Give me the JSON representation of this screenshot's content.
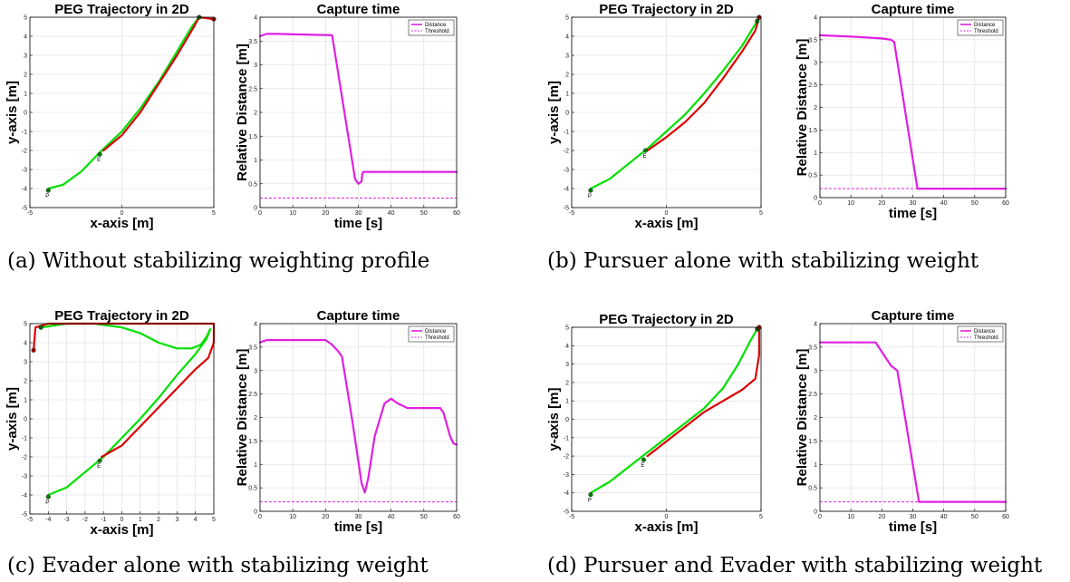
{
  "panels": [
    {
      "caption": "(a) Without stabilizing weighting profile",
      "trajectory": {
        "type": "line",
        "title": "PEG Trajectory in 2D",
        "xlabel": "x-axis [m]",
        "ylabel": "y-axis [m]",
        "xlim": [
          -5,
          5
        ],
        "ylim": [
          -5,
          5
        ],
        "xticks": [
          -5,
          0,
          5
        ],
        "yticks": [
          -5,
          -4,
          -3,
          -2,
          -1,
          0,
          1,
          2,
          3,
          4,
          5
        ],
        "grid": true,
        "series": [
          {
            "color": "#00e000",
            "x": [
              -4,
              -3.2,
              -2.2,
              -1.2,
              0,
              1,
              2,
              3,
              3.8,
              4.2
            ],
            "y": [
              -4,
              -3.8,
              -3.1,
              -2.1,
              -1,
              0.2,
              1.6,
              3.2,
              4.5,
              5
            ]
          },
          {
            "color": "#dd0000",
            "x": [
              -1,
              0,
              1,
              2,
              3,
              3.8,
              4.2,
              5
            ],
            "y": [
              -2,
              -1.2,
              0,
              1.5,
              3,
              4.3,
              5,
              4.9
            ]
          }
        ],
        "markers": [
          {
            "x": -4,
            "y": -4.1,
            "color": "#008000",
            "label": "P"
          },
          {
            "x": -1.2,
            "y": -2.2,
            "color": "#008000",
            "label": "E"
          },
          {
            "x": 4.2,
            "y": 5,
            "color": "#006400",
            "label": ""
          },
          {
            "x": 5,
            "y": 4.9,
            "color": "#a00000",
            "label": ""
          }
        ]
      },
      "capture": {
        "type": "line",
        "title": "Capture time",
        "xlabel": "time [s]",
        "ylabel": "Relative Distance [m]",
        "xlim": [
          0,
          60
        ],
        "ylim": [
          0,
          4
        ],
        "xticks": [
          0,
          10,
          20,
          30,
          40,
          50,
          60
        ],
        "yticks": [
          0,
          0.5,
          1,
          1.5,
          2,
          2.5,
          3,
          3.5,
          4
        ],
        "grid": true,
        "legend_position": "top-right",
        "legend": [
          "Distance",
          "Threshold"
        ],
        "threshold": 0.2,
        "series": [
          {
            "color": "#e020e0",
            "x": [
              0,
              2,
              5,
              22,
              29,
              30,
              31,
              31.2,
              31.5,
              60
            ],
            "y": [
              3.6,
              3.65,
              3.65,
              3.62,
              0.6,
              0.5,
              0.55,
              0.7,
              0.75,
              0.75
            ]
          }
        ]
      }
    },
    {
      "caption": "(b) Pursuer alone with stabilizing weight",
      "trajectory": {
        "type": "line",
        "title": "PEG Trajectory in 2D",
        "xlabel": "x-axis [m]",
        "ylabel": "y-axis [m]",
        "xlim": [
          -5,
          5
        ],
        "ylim": [
          -5,
          5
        ],
        "xticks": [
          -5,
          0,
          5
        ],
        "yticks": [
          -5,
          -4,
          -3,
          -2,
          -1,
          0,
          1,
          2,
          3,
          4,
          5
        ],
        "grid": true,
        "series": [
          {
            "color": "#00e000",
            "x": [
              -4,
              -3,
              -2,
              -1,
              0,
              1,
              2,
              3,
              4,
              4.8
            ],
            "y": [
              -4,
              -3.5,
              -2.7,
              -1.9,
              -1,
              -0.1,
              1,
              2.2,
              3.5,
              4.8
            ]
          },
          {
            "color": "#dd0000",
            "x": [
              -1,
              0,
              1,
              2,
              3,
              4,
              4.7,
              4.9
            ],
            "y": [
              -2,
              -1.3,
              -0.5,
              0.5,
              1.8,
              3.2,
              4.3,
              5
            ]
          }
        ],
        "markers": [
          {
            "x": -4,
            "y": -4.1,
            "color": "#008000",
            "label": "P"
          },
          {
            "x": -1.1,
            "y": -2,
            "color": "#008000",
            "label": "E"
          },
          {
            "x": 4.8,
            "y": 4.8,
            "color": "#006400",
            "label": ""
          },
          {
            "x": 4.9,
            "y": 5,
            "color": "#a00000",
            "label": ""
          }
        ]
      },
      "capture": {
        "type": "line",
        "title": "Capture time",
        "xlabel": "time [s]",
        "ylabel": "Relative Distance [m]",
        "xlim": [
          0,
          60
        ],
        "ylim": [
          0,
          4
        ],
        "xticks": [
          0,
          10,
          20,
          30,
          40,
          50,
          60
        ],
        "yticks": [
          0,
          0.5,
          1,
          1.5,
          2,
          2.5,
          3,
          3.5,
          4
        ],
        "grid": true,
        "legend_position": "top-right",
        "legend": [
          "Distance",
          "Threshold"
        ],
        "threshold": 0.2,
        "series": [
          {
            "color": "#e020e0",
            "x": [
              0,
              10,
              20,
              23,
              24,
              31.5,
              32,
              60
            ],
            "y": [
              3.6,
              3.57,
              3.53,
              3.5,
              3.45,
              0.2,
              0.2,
              0.2
            ]
          }
        ]
      }
    },
    {
      "caption": "(c) Evader alone with stabilizing weight",
      "trajectory": {
        "type": "line",
        "title": "PEG Trajectory in 2D",
        "xlabel": "x-axis [m]",
        "ylabel": "y-axis [m]",
        "xlim": [
          -5,
          5
        ],
        "ylim": [
          -5,
          5
        ],
        "xticks": [
          -5,
          -4,
          -3,
          -2,
          -1,
          0,
          1,
          2,
          3,
          4,
          5
        ],
        "yticks": [
          -5,
          -4,
          -3,
          -2,
          -1,
          0,
          1,
          2,
          3,
          4,
          5
        ],
        "grid": true,
        "series": [
          {
            "color": "#00e000",
            "x": [
              -4,
              -3,
              -2,
              -1,
              0,
              1,
              2,
              3,
              4,
              4.6,
              4.8
            ],
            "y": [
              -4,
              -3.6,
              -2.8,
              -2,
              -1,
              0,
              1.1,
              2.3,
              3.4,
              4.2,
              4.7
            ]
          },
          {
            "color": "#00e000",
            "x": [
              -4.4,
              -3,
              -1.5,
              0,
              1,
              2,
              3,
              3.8,
              4.3,
              4.6,
              4.8
            ],
            "y": [
              4.8,
              5,
              5,
              4.8,
              4.5,
              4,
              3.7,
              3.7,
              3.9,
              4.3,
              4.7
            ]
          },
          {
            "color": "#dd0000",
            "x": [
              -1.1,
              0,
              1,
              2,
              3,
              4,
              4.7,
              5,
              5,
              3,
              0,
              -4,
              -4.7,
              -4.8
            ],
            "y": [
              -2,
              -1.4,
              -0.4,
              0.6,
              1.6,
              2.6,
              3.2,
              4,
              5,
              5,
              5,
              5,
              4.8,
              3.6
            ]
          }
        ],
        "markers": [
          {
            "x": -4,
            "y": -4.1,
            "color": "#008000",
            "label": "P"
          },
          {
            "x": -1.2,
            "y": -2.2,
            "color": "#008000",
            "label": "E"
          },
          {
            "x": -4.4,
            "y": 4.8,
            "color": "#006400",
            "label": ""
          },
          {
            "x": -4.8,
            "y": 3.6,
            "color": "#a00000",
            "label": ""
          }
        ]
      },
      "capture": {
        "type": "line",
        "title": "Capture time",
        "xlabel": "time [s]",
        "ylabel": "Relative Distance [m]",
        "xlim": [
          0,
          60
        ],
        "ylim": [
          0,
          4
        ],
        "xticks": [
          0,
          10,
          20,
          30,
          40,
          50,
          60
        ],
        "yticks": [
          0,
          0.5,
          1,
          1.5,
          2,
          2.5,
          3,
          3.5,
          4
        ],
        "grid": true,
        "legend_position": "top-right",
        "legend": [
          "Distance",
          "Threshold"
        ],
        "threshold": 0.2,
        "series": [
          {
            "color": "#e020e0",
            "x": [
              0,
              2,
              5,
              20,
              22,
              24,
              25,
              28,
              31,
              32,
              33,
              35,
              38,
              40,
              42,
              45,
              50,
              55,
              56,
              58,
              59,
              60
            ],
            "y": [
              3.6,
              3.65,
              3.65,
              3.65,
              3.55,
              3.4,
              3.3,
              2.0,
              0.6,
              0.4,
              0.7,
              1.6,
              2.3,
              2.4,
              2.3,
              2.2,
              2.2,
              2.2,
              2.1,
              1.6,
              1.45,
              1.42
            ]
          }
        ]
      }
    },
    {
      "caption": "(d) Pursuer and Evader with stabilizing weight",
      "trajectory": {
        "type": "line",
        "title": "PEG Trajectory in 2D",
        "xlabel": "x-axis [m]",
        "ylabel": "y-axis [m]",
        "xlim": [
          -5,
          5
        ],
        "ylim": [
          -5,
          5
        ],
        "xticks": [
          -5,
          0,
          5
        ],
        "yticks": [
          -5,
          -4,
          -3,
          -2,
          -1,
          0,
          1,
          2,
          3,
          4,
          5
        ],
        "grid": true,
        "series": [
          {
            "color": "#00e000",
            "x": [
              -4,
              -3,
              -2,
              -1,
              0,
              1,
              2,
              3,
              3.8,
              4.4,
              4.8
            ],
            "y": [
              -4,
              -3.4,
              -2.6,
              -1.8,
              -1,
              -0.2,
              0.6,
              1.7,
              3,
              4.2,
              4.9
            ]
          },
          {
            "color": "#dd0000",
            "x": [
              -1,
              0,
              1,
              2,
              3,
              4,
              4.7,
              4.9,
              4.9
            ],
            "y": [
              -2,
              -1.2,
              -0.4,
              0.4,
              1,
              1.6,
              2.2,
              3.5,
              5
            ]
          }
        ],
        "markers": [
          {
            "x": -4,
            "y": -4.1,
            "color": "#008000",
            "label": "P"
          },
          {
            "x": -1.2,
            "y": -2.2,
            "color": "#008000",
            "label": "E"
          },
          {
            "x": 4.8,
            "y": 4.9,
            "color": "#006400",
            "label": ""
          },
          {
            "x": 4.9,
            "y": 5,
            "color": "#a00000",
            "label": ""
          }
        ]
      },
      "capture": {
        "type": "line",
        "title": "Capture time",
        "xlabel": "time [s]",
        "ylabel": "Relative Distance [m]",
        "xlim": [
          0,
          60
        ],
        "ylim": [
          0,
          4
        ],
        "xticks": [
          0,
          10,
          20,
          30,
          40,
          50,
          60
        ],
        "yticks": [
          0,
          0.5,
          1,
          1.5,
          2,
          2.5,
          3,
          3.5,
          4
        ],
        "grid": true,
        "legend_position": "top-right",
        "legend": [
          "Distance",
          "Threshold"
        ],
        "threshold": 0.2,
        "series": [
          {
            "color": "#e020e0",
            "x": [
              0,
              10,
              18,
              20,
              23,
              25,
              32,
              33,
              60
            ],
            "y": [
              3.6,
              3.6,
              3.6,
              3.4,
              3.1,
              3.0,
              0.2,
              0.2,
              0.2
            ]
          }
        ]
      }
    }
  ]
}
